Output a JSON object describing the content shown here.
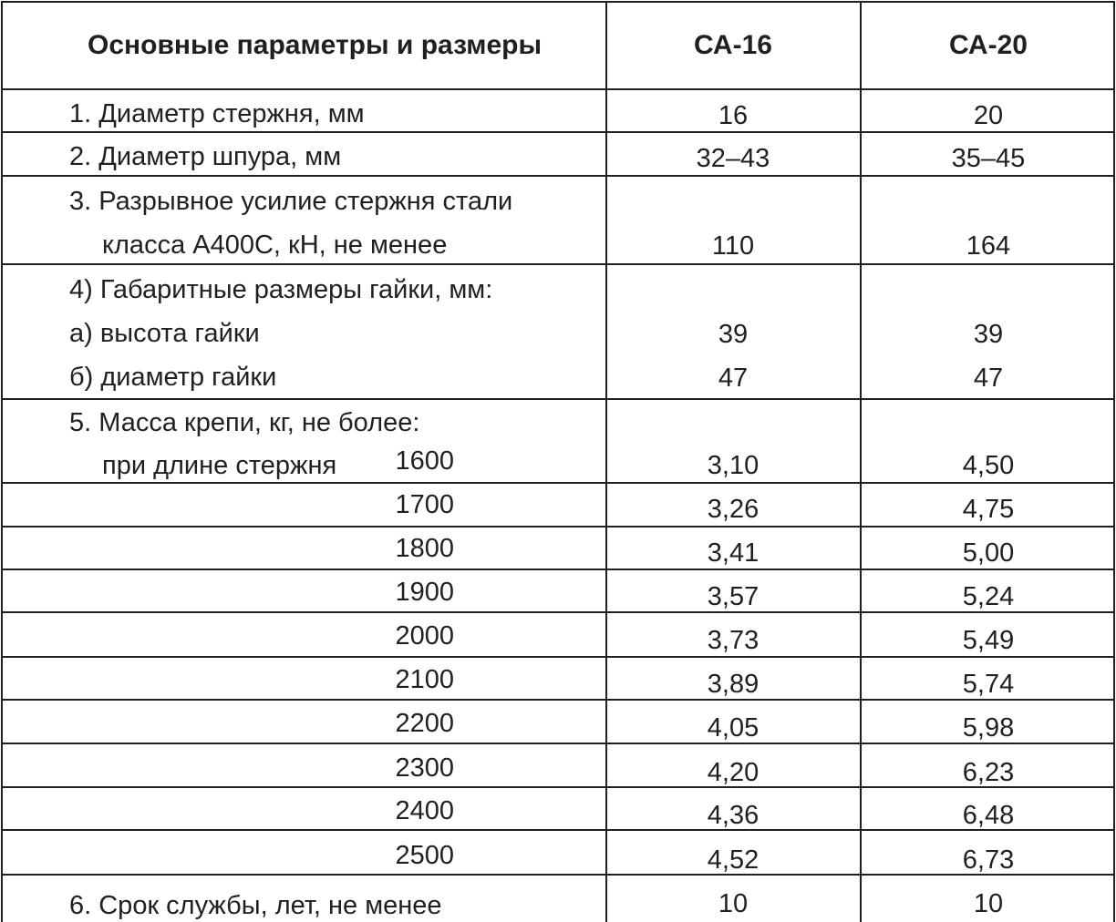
{
  "table": {
    "headers": {
      "parameters": "Основные параметры и размеры",
      "ca16": "СА-16",
      "ca20": "СА-20"
    },
    "rows": {
      "rod_diameter": {
        "label": "1. Диаметр стержня, мм",
        "ca16": "16",
        "ca20": "20"
      },
      "hole_diameter": {
        "label": "2. Диаметр шпура, мм",
        "ca16": "32–43",
        "ca20": "35–45"
      },
      "breaking_force": {
        "label_line1": "3. Разрывное усилие стержня стали",
        "label_line2": "класса А400С, кН, не менее",
        "ca16": "110",
        "ca20": "164"
      },
      "nut_dimensions": {
        "label": "4) Габаритные размеры гайки, мм:",
        "height": {
          "label": "а) высота гайки",
          "ca16": "39",
          "ca20": "39"
        },
        "diameter": {
          "label": "б) диаметр гайки",
          "ca16": "47",
          "ca20": "47"
        }
      },
      "mass": {
        "label_line1": "5. Масса крепи, кг, не более:",
        "label_line2": "при длине стержня",
        "lengths": [
          {
            "length": "1600",
            "ca16": "3,10",
            "ca20": "4,50"
          },
          {
            "length": "1700",
            "ca16": "3,26",
            "ca20": "4,75"
          },
          {
            "length": "1800",
            "ca16": "3,41",
            "ca20": "5,00"
          },
          {
            "length": "1900",
            "ca16": "3,57",
            "ca20": "5,24"
          },
          {
            "length": "2000",
            "ca16": "3,73",
            "ca20": "5,49"
          },
          {
            "length": "2100",
            "ca16": "3,89",
            "ca20": "5,74"
          },
          {
            "length": "2200",
            "ca16": "4,05",
            "ca20": "5,98"
          },
          {
            "length": "2300",
            "ca16": "4,20",
            "ca20": "6,23"
          },
          {
            "length": "2400",
            "ca16": "4,36",
            "ca20": "6,48"
          },
          {
            "length": "2500",
            "ca16": "4,52",
            "ca20": "6,73"
          }
        ]
      },
      "service_life": {
        "label": "6. Срок службы, лет, не менее",
        "ca16": "10",
        "ca20": "10"
      }
    }
  }
}
